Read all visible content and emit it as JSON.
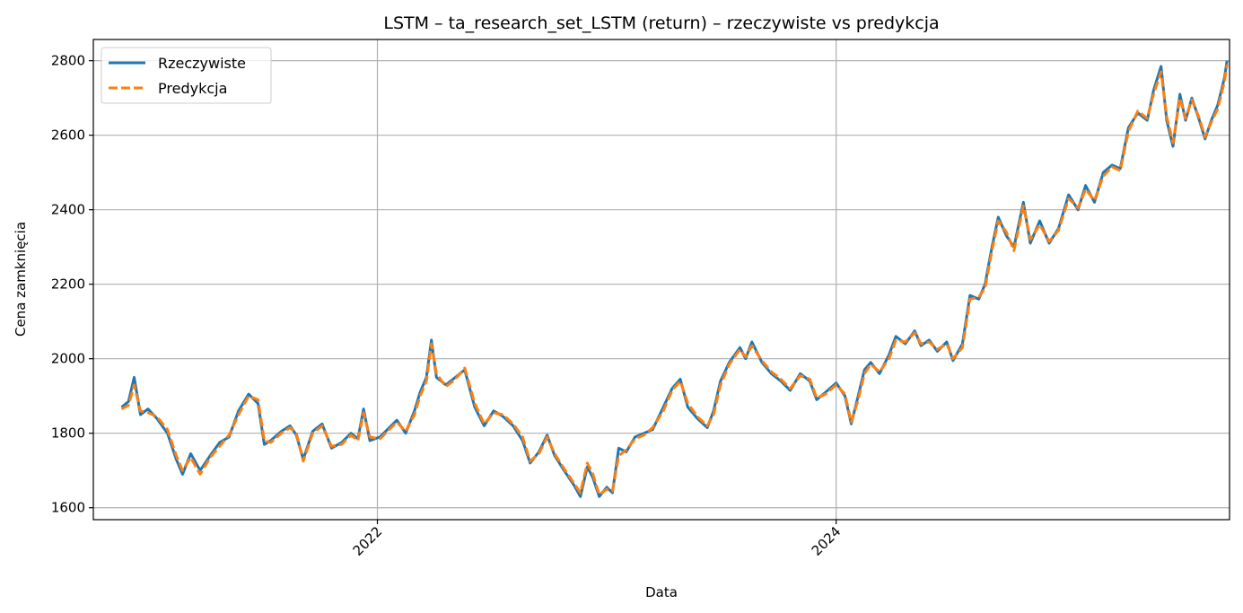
{
  "chart_data": {
    "type": "line",
    "title": "LSTM – ta_research_set_LSTM (return) – rzeczywiste vs predykcja",
    "xlabel": "Data",
    "ylabel": "Cena zamknięcia",
    "x_ticks": [
      {
        "date": "2022-01-01",
        "label": "2022"
      },
      {
        "date": "2024-01-01",
        "label": "2024"
      }
    ],
    "y_ticks": [
      1600,
      1800,
      2000,
      2200,
      2400,
      2600,
      2800
    ],
    "xlim": [
      "2020-10-06",
      "2025-09-18"
    ],
    "ylim": [
      1568,
      2857
    ],
    "grid": true,
    "legend_position": "top-left",
    "series": [
      {
        "name": "Rzeczywiste",
        "color": "#1f77b4",
        "style": "solid",
        "points": [
          [
            "2020-11-20",
            1870
          ],
          [
            "2020-12-01",
            1885
          ],
          [
            "2020-12-10",
            1950
          ],
          [
            "2020-12-20",
            1850
          ],
          [
            "2021-01-01",
            1865
          ],
          [
            "2021-01-15",
            1840
          ],
          [
            "2021-02-01",
            1800
          ],
          [
            "2021-02-15",
            1730
          ],
          [
            "2021-02-25",
            1690
          ],
          [
            "2021-03-10",
            1745
          ],
          [
            "2021-03-25",
            1700
          ],
          [
            "2021-04-10",
            1740
          ],
          [
            "2021-04-25",
            1775
          ],
          [
            "2021-05-10",
            1790
          ],
          [
            "2021-05-25",
            1860
          ],
          [
            "2021-06-10",
            1905
          ],
          [
            "2021-06-25",
            1880
          ],
          [
            "2021-07-05",
            1770
          ],
          [
            "2021-07-15",
            1780
          ],
          [
            "2021-08-01",
            1805
          ],
          [
            "2021-08-15",
            1820
          ],
          [
            "2021-08-25",
            1795
          ],
          [
            "2021-09-05",
            1730
          ],
          [
            "2021-09-20",
            1805
          ],
          [
            "2021-10-05",
            1825
          ],
          [
            "2021-10-20",
            1760
          ],
          [
            "2021-11-05",
            1775
          ],
          [
            "2021-11-20",
            1800
          ],
          [
            "2021-12-01",
            1785
          ],
          [
            "2021-12-10",
            1865
          ],
          [
            "2021-12-20",
            1780
          ],
          [
            "2022-01-05",
            1790
          ],
          [
            "2022-01-20",
            1815
          ],
          [
            "2022-02-01",
            1835
          ],
          [
            "2022-02-15",
            1800
          ],
          [
            "2022-03-01",
            1860
          ],
          [
            "2022-03-10",
            1910
          ],
          [
            "2022-03-20",
            1950
          ],
          [
            "2022-03-28",
            2050
          ],
          [
            "2022-04-05",
            1950
          ],
          [
            "2022-04-20",
            1930
          ],
          [
            "2022-05-05",
            1950
          ],
          [
            "2022-05-20",
            1970
          ],
          [
            "2022-06-05",
            1870
          ],
          [
            "2022-06-20",
            1820
          ],
          [
            "2022-07-05",
            1860
          ],
          [
            "2022-07-20",
            1845
          ],
          [
            "2022-08-05",
            1820
          ],
          [
            "2022-08-20",
            1780
          ],
          [
            "2022-09-01",
            1720
          ],
          [
            "2022-09-15",
            1750
          ],
          [
            "2022-09-28",
            1795
          ],
          [
            "2022-10-10",
            1740
          ],
          [
            "2022-10-25",
            1700
          ],
          [
            "2022-11-10",
            1660
          ],
          [
            "2022-11-20",
            1630
          ],
          [
            "2022-12-01",
            1710
          ],
          [
            "2022-12-10",
            1680
          ],
          [
            "2022-12-20",
            1630
          ],
          [
            "2023-01-01",
            1655
          ],
          [
            "2023-01-10",
            1640
          ],
          [
            "2023-01-20",
            1760
          ],
          [
            "2023-02-01",
            1750
          ],
          [
            "2023-02-15",
            1790
          ],
          [
            "2023-03-01",
            1800
          ],
          [
            "2023-03-15",
            1810
          ],
          [
            "2023-04-01",
            1870
          ],
          [
            "2023-04-15",
            1920
          ],
          [
            "2023-04-28",
            1945
          ],
          [
            "2023-05-10",
            1870
          ],
          [
            "2023-05-25",
            1840
          ],
          [
            "2023-06-10",
            1815
          ],
          [
            "2023-06-20",
            1860
          ],
          [
            "2023-07-01",
            1940
          ],
          [
            "2023-07-15",
            1990
          ],
          [
            "2023-08-01",
            2030
          ],
          [
            "2023-08-10",
            2000
          ],
          [
            "2023-08-20",
            2045
          ],
          [
            "2023-09-05",
            1990
          ],
          [
            "2023-09-20",
            1960
          ],
          [
            "2023-10-05",
            1940
          ],
          [
            "2023-10-20",
            1915
          ],
          [
            "2023-11-05",
            1960
          ],
          [
            "2023-11-20",
            1940
          ],
          [
            "2023-12-01",
            1890
          ],
          [
            "2023-12-15",
            1910
          ],
          [
            "2024-01-01",
            1935
          ],
          [
            "2024-01-15",
            1900
          ],
          [
            "2024-01-25",
            1825
          ],
          [
            "2024-02-05",
            1900
          ],
          [
            "2024-02-15",
            1970
          ],
          [
            "2024-02-25",
            1990
          ],
          [
            "2024-03-10",
            1960
          ],
          [
            "2024-03-25",
            2010
          ],
          [
            "2024-04-05",
            2060
          ],
          [
            "2024-04-20",
            2040
          ],
          [
            "2024-05-05",
            2075
          ],
          [
            "2024-05-15",
            2035
          ],
          [
            "2024-05-28",
            2050
          ],
          [
            "2024-06-10",
            2020
          ],
          [
            "2024-06-25",
            2045
          ],
          [
            "2024-07-05",
            1995
          ],
          [
            "2024-07-20",
            2040
          ],
          [
            "2024-08-01",
            2170
          ],
          [
            "2024-08-15",
            2160
          ],
          [
            "2024-08-25",
            2200
          ],
          [
            "2024-09-05",
            2300
          ],
          [
            "2024-09-15",
            2380
          ],
          [
            "2024-09-28",
            2330
          ],
          [
            "2024-10-10",
            2300
          ],
          [
            "2024-10-25",
            2420
          ],
          [
            "2024-11-05",
            2310
          ],
          [
            "2024-11-20",
            2370
          ],
          [
            "2024-12-05",
            2310
          ],
          [
            "2024-12-20",
            2350
          ],
          [
            "2025-01-05",
            2440
          ],
          [
            "2025-01-20",
            2400
          ],
          [
            "2025-02-01",
            2465
          ],
          [
            "2025-02-15",
            2420
          ],
          [
            "2025-03-01",
            2500
          ],
          [
            "2025-03-15",
            2520
          ],
          [
            "2025-03-28",
            2510
          ],
          [
            "2025-04-10",
            2620
          ],
          [
            "2025-04-25",
            2660
          ],
          [
            "2025-05-10",
            2640
          ],
          [
            "2025-05-20",
            2720
          ],
          [
            "2025-06-01",
            2785
          ],
          [
            "2025-06-10",
            2640
          ],
          [
            "2025-06-20",
            2570
          ],
          [
            "2025-07-01",
            2710
          ],
          [
            "2025-07-10",
            2640
          ],
          [
            "2025-07-20",
            2700
          ],
          [
            "2025-08-01",
            2640
          ],
          [
            "2025-08-10",
            2590
          ],
          [
            "2025-08-20",
            2640
          ],
          [
            "2025-08-30",
            2680
          ],
          [
            "2025-09-05",
            2720
          ],
          [
            "2025-09-10",
            2755
          ],
          [
            "2025-09-14",
            2800
          ]
        ]
      },
      {
        "name": "Predykcja",
        "color": "#ff7f0e",
        "style": "dashed",
        "points": [
          [
            "2020-11-20",
            1865
          ],
          [
            "2020-12-01",
            1875
          ],
          [
            "2020-12-10",
            1930
          ],
          [
            "2020-12-20",
            1860
          ],
          [
            "2021-01-01",
            1855
          ],
          [
            "2021-01-15",
            1845
          ],
          [
            "2021-02-01",
            1810
          ],
          [
            "2021-02-15",
            1740
          ],
          [
            "2021-02-25",
            1700
          ],
          [
            "2021-03-10",
            1735
          ],
          [
            "2021-03-25",
            1690
          ],
          [
            "2021-04-10",
            1735
          ],
          [
            "2021-04-25",
            1765
          ],
          [
            "2021-05-10",
            1795
          ],
          [
            "2021-05-25",
            1850
          ],
          [
            "2021-06-10",
            1900
          ],
          [
            "2021-06-25",
            1890
          ],
          [
            "2021-07-05",
            1780
          ],
          [
            "2021-07-15",
            1775
          ],
          [
            "2021-08-01",
            1800
          ],
          [
            "2021-08-15",
            1815
          ],
          [
            "2021-08-25",
            1800
          ],
          [
            "2021-09-05",
            1725
          ],
          [
            "2021-09-20",
            1800
          ],
          [
            "2021-10-05",
            1820
          ],
          [
            "2021-10-20",
            1765
          ],
          [
            "2021-11-05",
            1770
          ],
          [
            "2021-11-20",
            1795
          ],
          [
            "2021-12-01",
            1780
          ],
          [
            "2021-12-10",
            1855
          ],
          [
            "2021-12-20",
            1790
          ],
          [
            "2022-01-05",
            1785
          ],
          [
            "2022-01-20",
            1810
          ],
          [
            "2022-02-01",
            1830
          ],
          [
            "2022-02-15",
            1805
          ],
          [
            "2022-03-01",
            1850
          ],
          [
            "2022-03-10",
            1900
          ],
          [
            "2022-03-20",
            1940
          ],
          [
            "2022-03-28",
            2040
          ],
          [
            "2022-04-05",
            1960
          ],
          [
            "2022-04-20",
            1925
          ],
          [
            "2022-05-05",
            1945
          ],
          [
            "2022-05-20",
            1975
          ],
          [
            "2022-06-05",
            1880
          ],
          [
            "2022-06-20",
            1825
          ],
          [
            "2022-07-05",
            1855
          ],
          [
            "2022-07-20",
            1850
          ],
          [
            "2022-08-05",
            1825
          ],
          [
            "2022-08-20",
            1790
          ],
          [
            "2022-09-01",
            1725
          ],
          [
            "2022-09-15",
            1745
          ],
          [
            "2022-09-28",
            1790
          ],
          [
            "2022-10-10",
            1745
          ],
          [
            "2022-10-25",
            1705
          ],
          [
            "2022-11-10",
            1665
          ],
          [
            "2022-11-20",
            1640
          ],
          [
            "2022-12-01",
            1720
          ],
          [
            "2022-12-10",
            1690
          ],
          [
            "2022-12-20",
            1635
          ],
          [
            "2023-01-01",
            1650
          ],
          [
            "2023-01-10",
            1645
          ],
          [
            "2023-01-20",
            1740
          ],
          [
            "2023-02-01",
            1755
          ],
          [
            "2023-02-15",
            1785
          ],
          [
            "2023-03-01",
            1795
          ],
          [
            "2023-03-15",
            1815
          ],
          [
            "2023-04-01",
            1860
          ],
          [
            "2023-04-15",
            1915
          ],
          [
            "2023-04-28",
            1940
          ],
          [
            "2023-05-10",
            1880
          ],
          [
            "2023-05-25",
            1845
          ],
          [
            "2023-06-10",
            1820
          ],
          [
            "2023-06-20",
            1850
          ],
          [
            "2023-07-01",
            1930
          ],
          [
            "2023-07-15",
            1985
          ],
          [
            "2023-08-01",
            2025
          ],
          [
            "2023-08-10",
            2005
          ],
          [
            "2023-08-20",
            2035
          ],
          [
            "2023-09-05",
            1995
          ],
          [
            "2023-09-20",
            1965
          ],
          [
            "2023-10-05",
            1945
          ],
          [
            "2023-10-20",
            1920
          ],
          [
            "2023-11-05",
            1955
          ],
          [
            "2023-11-20",
            1945
          ],
          [
            "2023-12-01",
            1895
          ],
          [
            "2023-12-15",
            1905
          ],
          [
            "2024-01-01",
            1930
          ],
          [
            "2024-01-15",
            1905
          ],
          [
            "2024-01-25",
            1830
          ],
          [
            "2024-02-05",
            1890
          ],
          [
            "2024-02-15",
            1960
          ],
          [
            "2024-02-25",
            1985
          ],
          [
            "2024-03-10",
            1965
          ],
          [
            "2024-03-25",
            2000
          ],
          [
            "2024-04-05",
            2050
          ],
          [
            "2024-04-20",
            2045
          ],
          [
            "2024-05-05",
            2070
          ],
          [
            "2024-05-15",
            2040
          ],
          [
            "2024-05-28",
            2045
          ],
          [
            "2024-06-10",
            2025
          ],
          [
            "2024-06-25",
            2040
          ],
          [
            "2024-07-05",
            2000
          ],
          [
            "2024-07-20",
            2030
          ],
          [
            "2024-08-01",
            2160
          ],
          [
            "2024-08-15",
            2165
          ],
          [
            "2024-08-25",
            2190
          ],
          [
            "2024-09-05",
            2290
          ],
          [
            "2024-09-15",
            2370
          ],
          [
            "2024-09-28",
            2340
          ],
          [
            "2024-10-10",
            2290
          ],
          [
            "2024-10-25",
            2410
          ],
          [
            "2024-11-05",
            2320
          ],
          [
            "2024-11-20",
            2360
          ],
          [
            "2024-12-05",
            2315
          ],
          [
            "2024-12-20",
            2345
          ],
          [
            "2025-01-05",
            2430
          ],
          [
            "2025-01-20",
            2405
          ],
          [
            "2025-02-01",
            2455
          ],
          [
            "2025-02-15",
            2425
          ],
          [
            "2025-03-01",
            2490
          ],
          [
            "2025-03-15",
            2515
          ],
          [
            "2025-03-28",
            2505
          ],
          [
            "2025-04-10",
            2610
          ],
          [
            "2025-04-25",
            2665
          ],
          [
            "2025-05-10",
            2645
          ],
          [
            "2025-05-20",
            2710
          ],
          [
            "2025-06-01",
            2770
          ],
          [
            "2025-06-10",
            2650
          ],
          [
            "2025-06-20",
            2580
          ],
          [
            "2025-07-01",
            2700
          ],
          [
            "2025-07-10",
            2645
          ],
          [
            "2025-07-20",
            2695
          ],
          [
            "2025-08-01",
            2645
          ],
          [
            "2025-08-10",
            2595
          ],
          [
            "2025-08-20",
            2635
          ],
          [
            "2025-08-30",
            2670
          ],
          [
            "2025-09-05",
            2710
          ],
          [
            "2025-09-10",
            2745
          ],
          [
            "2025-09-14",
            2790
          ]
        ]
      }
    ]
  }
}
